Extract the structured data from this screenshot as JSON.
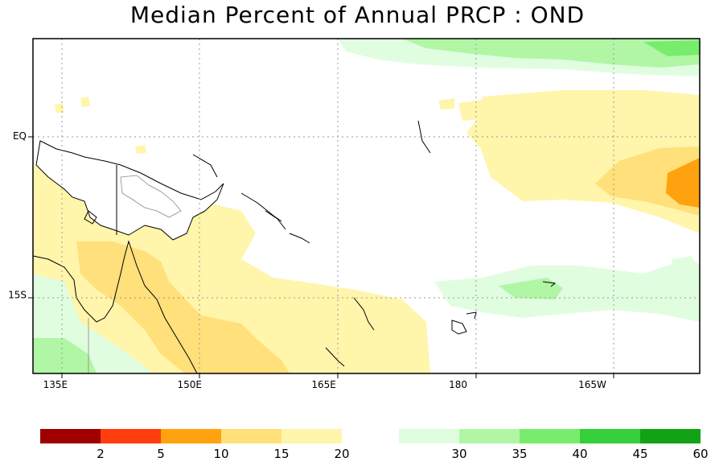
{
  "title": "Median Percent of Annual PRCP  :  OND",
  "lat_labels": [
    {
      "text": "EQ",
      "lat": 0
    },
    {
      "text": "15S",
      "lat": -15
    }
  ],
  "lon_labels": [
    {
      "text": "135E",
      "lon": 135
    },
    {
      "text": "150E",
      "lon": 150
    },
    {
      "text": "165E",
      "lon": 165
    },
    {
      "text": "180",
      "lon": 180
    },
    {
      "text": "165W",
      "lon": 195
    }
  ],
  "map_extent": {
    "lon_min": 132.5,
    "lon_max": 207.0,
    "lat_max": 9.2,
    "lat_min": -22.4
  },
  "colorbar_low": {
    "colors": [
      "#a00000",
      "#ff3d0d",
      "#ffa20f",
      "#ffe07a",
      "#fff5ab"
    ],
    "labels": [
      "2",
      "5",
      "10",
      "15",
      "20"
    ]
  },
  "colorbar_high": {
    "colors": [
      "#e0fde0",
      "#b1f6a5",
      "#78ec6c",
      "#35cf3a",
      "#13a216"
    ],
    "labels": [
      "30",
      "35",
      "40",
      "45",
      "60"
    ]
  }
}
